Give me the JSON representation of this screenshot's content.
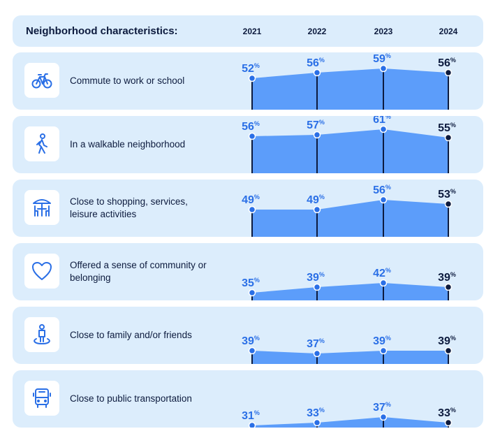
{
  "header": {
    "title": "Neighborhood characteristics:",
    "years": [
      "2021",
      "2022",
      "2023",
      "2024"
    ]
  },
  "colors": {
    "fill": "#5c9dfa",
    "point": "#2a6fe6",
    "last_point": "#0d1b3e",
    "row_bg": "#dcedfc",
    "icon": "#2a6fe6"
  },
  "chart_data": {
    "type": "area",
    "x": [
      "2021",
      "2022",
      "2023",
      "2024"
    ],
    "unit": "%",
    "rows": [
      {
        "label": "Commute to work or school",
        "icon": "bicycle-icon",
        "values": [
          52,
          56,
          59,
          56
        ]
      },
      {
        "label": "In a walkable neighborhood",
        "icon": "walking-person-icon",
        "values": [
          56,
          57,
          61,
          55
        ]
      },
      {
        "label": "Close to shopping, services, leisure activities",
        "icon": "cafe-table-icon",
        "values": [
          49,
          49,
          56,
          53
        ]
      },
      {
        "label": "Offered a sense of community or belonging",
        "icon": "heart-icon",
        "values": [
          35,
          39,
          42,
          39
        ]
      },
      {
        "label": "Close to family and/or friends",
        "icon": "person-location-icon",
        "values": [
          39,
          37,
          39,
          39
        ]
      },
      {
        "label": "Close to public transportation",
        "icon": "bus-icon",
        "values": [
          31,
          33,
          37,
          33
        ]
      }
    ]
  }
}
